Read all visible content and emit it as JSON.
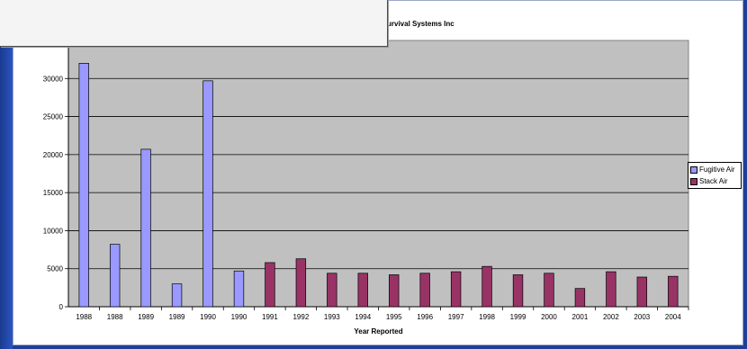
{
  "chart_data": {
    "type": "bar",
    "title": "urvival Systems Inc",
    "xlabel": "Year Reported",
    "ylabel": "",
    "ylim": [
      0,
      35000
    ],
    "yticks": [
      0,
      5000,
      10000,
      15000,
      20000,
      25000,
      30000
    ],
    "grid": true,
    "legend_position": "right",
    "categories": [
      "1988",
      "1988",
      "1989",
      "1989",
      "1990",
      "1990",
      "1991",
      "1992",
      "1993",
      "1994",
      "1995",
      "1996",
      "1997",
      "1998",
      "1999",
      "2000",
      "2001",
      "2002",
      "2003",
      "2004"
    ],
    "series": [
      {
        "name": "Fugitive Air",
        "color": "#9999ff",
        "values": [
          32000,
          8200,
          20700,
          3000,
          29700,
          4700,
          null,
          null,
          null,
          null,
          null,
          null,
          null,
          null,
          null,
          null,
          null,
          null,
          null,
          null
        ]
      },
      {
        "name": "Stack Air",
        "color": "#993366",
        "values": [
          null,
          null,
          null,
          null,
          null,
          null,
          5800,
          6300,
          4400,
          4400,
          4200,
          4400,
          4600,
          5300,
          4200,
          4400,
          2400,
          4600,
          3900,
          4000
        ]
      }
    ],
    "plot_background": "#c0c0c0"
  }
}
